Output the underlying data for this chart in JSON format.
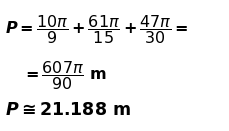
{
  "line1_math": "$\\boldsymbol{P = \\dfrac{10\\pi}{9} + \\dfrac{61\\pi}{15} + \\dfrac{47\\pi}{30}=}$",
  "line2_math": "$\\boldsymbol{= \\dfrac{607\\pi}{90}}$ $\\mathbf{m}$",
  "line3_math": "$\\boldsymbol{P \\cong 21.188}$ $\\mathbf{m}$",
  "bg_color": "#ffffff",
  "text_color": "#000000",
  "fontsize_line1": 11.5,
  "fontsize_line2": 11.5,
  "fontsize_line3": 12.5,
  "fig_width": 2.3,
  "fig_height": 1.31,
  "dpi": 100
}
